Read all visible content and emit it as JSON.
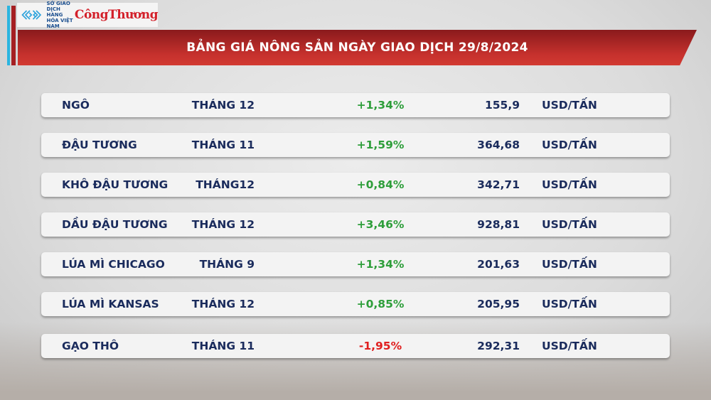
{
  "header": {
    "logo_org": "SỞ GIAO DỊCH HÀNG HÓA VIỆT NAM",
    "logo_brand": "CôngThương",
    "title": "BẢNG GIÁ NÔNG SẢN NGÀY GIAO DỊCH 29/8/2024"
  },
  "colors": {
    "positive": "#2e9e3a",
    "negative": "#e02020",
    "text": "#1a2b5c",
    "banner": "#c6312d"
  },
  "rows": [
    {
      "name": "NGÔ",
      "month": "THÁNG 12",
      "change": "+1,34%",
      "price": "155,9",
      "unit": "USD/TẤN"
    },
    {
      "name": "ĐẬU TƯƠNG",
      "month": "THÁNG 11",
      "change": "+1,59%",
      "price": "364,68",
      "unit": "USD/TẤN"
    },
    {
      "name": "KHÔ ĐẬU TƯƠNG",
      "month": "THÁNG12",
      "change": "+0,84%",
      "price": "342,71",
      "unit": "USD/TẤN"
    },
    {
      "name": "DẦU ĐẬU TƯƠNG",
      "month": "THÁNG 12",
      "change": "+3,46%",
      "price": "928,81",
      "unit": "USD/TẤN"
    },
    {
      "name": "LÚA MÌ CHICAGO",
      "month": "THÁNG 9",
      "change": "+1,34%",
      "price": "201,63",
      "unit": "USD/TẤN"
    },
    {
      "name": "LÚA MÌ KANSAS",
      "month": "THÁNG 12",
      "change": "+0,85%",
      "price": "205,95",
      "unit": "USD/TẤN"
    },
    {
      "name": "GẠO THÔ",
      "month": "THÁNG 11",
      "change": "-1,95%",
      "price": "292,31",
      "unit": "USD/TẤN"
    }
  ]
}
